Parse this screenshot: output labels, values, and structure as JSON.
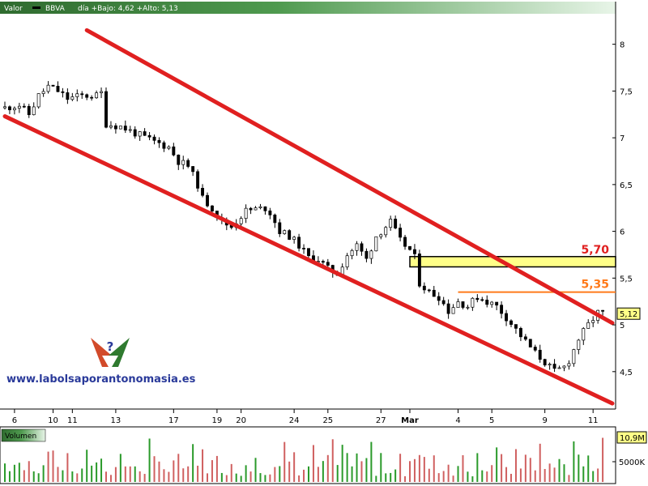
{
  "header": {
    "valor_label": "Valor",
    "ticker": "BBVA",
    "range_text": "día +Bajo: 4,62 +Alto: 5,13"
  },
  "colors": {
    "channel": "#e02020",
    "up_bar": "#2a9a2a",
    "down_bar": "#d06060",
    "orange": "#ff7a1a",
    "level_red": "#e02020",
    "zone_fill": "#ffff88",
    "header_green_dark": "#2f6b2f",
    "header_green_light": "#e8f5e8"
  },
  "watermark": {
    "text": "www.labolsaporantonomasia.es",
    "logo": "question-mark-arrows-logo"
  },
  "volume_panel": {
    "label": "Volumen",
    "last_value_label": "10,9M",
    "tick_label": "5000K"
  },
  "chart_data": {
    "type": "candlestick",
    "title": "",
    "xlabel": "",
    "ylabel": "",
    "ylim": [
      4.1,
      8.3
    ],
    "y_ticks": [
      {
        "value": 4.5,
        "label": "4,5"
      },
      {
        "value": 5,
        "label": "5"
      },
      {
        "value": 5.5,
        "label": "5,5"
      },
      {
        "value": 6,
        "label": "6"
      },
      {
        "value": 6.5,
        "label": "6,5"
      },
      {
        "value": 7,
        "label": "7"
      },
      {
        "value": 7.5,
        "label": "7,5"
      },
      {
        "value": 8,
        "label": "8"
      }
    ],
    "x_ticks": [
      "6",
      "10",
      "11",
      "13",
      "17",
      "19",
      "20",
      "24",
      "25",
      "27",
      "Mar",
      "4",
      "5",
      "9",
      "11"
    ],
    "x_tick_index": [
      2,
      10,
      14,
      23,
      35,
      44,
      49,
      60,
      67,
      78,
      84,
      94,
      101,
      112,
      122
    ],
    "n_periods": 126,
    "last_price": 5.12,
    "last_price_label": "5,12",
    "levels": [
      {
        "value": 5.7,
        "label": "5,70",
        "type": "resistance-zone",
        "zone": [
          5.62,
          5.73
        ],
        "from_index": 84
      },
      {
        "value": 5.35,
        "label": "5,35",
        "type": "resistance-line",
        "from_index": 94
      }
    ],
    "channel_lines": [
      {
        "name": "upper",
        "from": [
          17,
          8.15
        ],
        "to": [
          126,
          5.02
        ]
      },
      {
        "name": "lower",
        "from": [
          0,
          7.23
        ],
        "to": [
          126,
          4.16
        ]
      }
    ],
    "price_path": [
      [
        0,
        7.32
      ],
      [
        3,
        7.35
      ],
      [
        5,
        7.25
      ],
      [
        7,
        7.45
      ],
      [
        9,
        7.55
      ],
      [
        11,
        7.5
      ],
      [
        13,
        7.42
      ],
      [
        16,
        7.45
      ],
      [
        19,
        7.45
      ],
      [
        20,
        7.48
      ],
      [
        21,
        7.15
      ],
      [
        24,
        7.12
      ],
      [
        27,
        7.05
      ],
      [
        30,
        6.98
      ],
      [
        34,
        6.9
      ],
      [
        36,
        6.75
      ],
      [
        38,
        6.7
      ],
      [
        40,
        6.5
      ],
      [
        41,
        6.35
      ],
      [
        43,
        6.25
      ],
      [
        45,
        6.1
      ],
      [
        47,
        6.05
      ],
      [
        50,
        6.22
      ],
      [
        54,
        6.25
      ],
      [
        55,
        6.2
      ],
      [
        57,
        6.0
      ],
      [
        59,
        5.95
      ],
      [
        61,
        5.85
      ],
      [
        63,
        5.72
      ],
      [
        65,
        5.7
      ],
      [
        67,
        5.6
      ],
      [
        69,
        5.55
      ],
      [
        71,
        5.75
      ],
      [
        73,
        5.85
      ],
      [
        75,
        5.7
      ],
      [
        77,
        5.95
      ],
      [
        79,
        6.05
      ],
      [
        80,
        6.1
      ],
      [
        82,
        5.9
      ],
      [
        84,
        5.8
      ],
      [
        85,
        5.72
      ],
      [
        86,
        5.45
      ],
      [
        88,
        5.35
      ],
      [
        90,
        5.3
      ],
      [
        92,
        5.15
      ],
      [
        94,
        5.25
      ],
      [
        96,
        5.2
      ],
      [
        98,
        5.3
      ],
      [
        100,
        5.25
      ],
      [
        102,
        5.2
      ],
      [
        104,
        5.08
      ],
      [
        106,
        4.95
      ],
      [
        108,
        4.82
      ],
      [
        110,
        4.7
      ],
      [
        112,
        4.6
      ],
      [
        114,
        4.5
      ],
      [
        116,
        4.55
      ],
      [
        117,
        4.62
      ],
      [
        119,
        4.85
      ],
      [
        121,
        5.0
      ],
      [
        123,
        5.13
      ],
      [
        124,
        5.12
      ]
    ],
    "volume": {
      "ylim": [
        0,
        12000000
      ],
      "scale_ticks": [
        5000000,
        10900000
      ],
      "values_seed": 7,
      "last_value": 10900000
    }
  }
}
